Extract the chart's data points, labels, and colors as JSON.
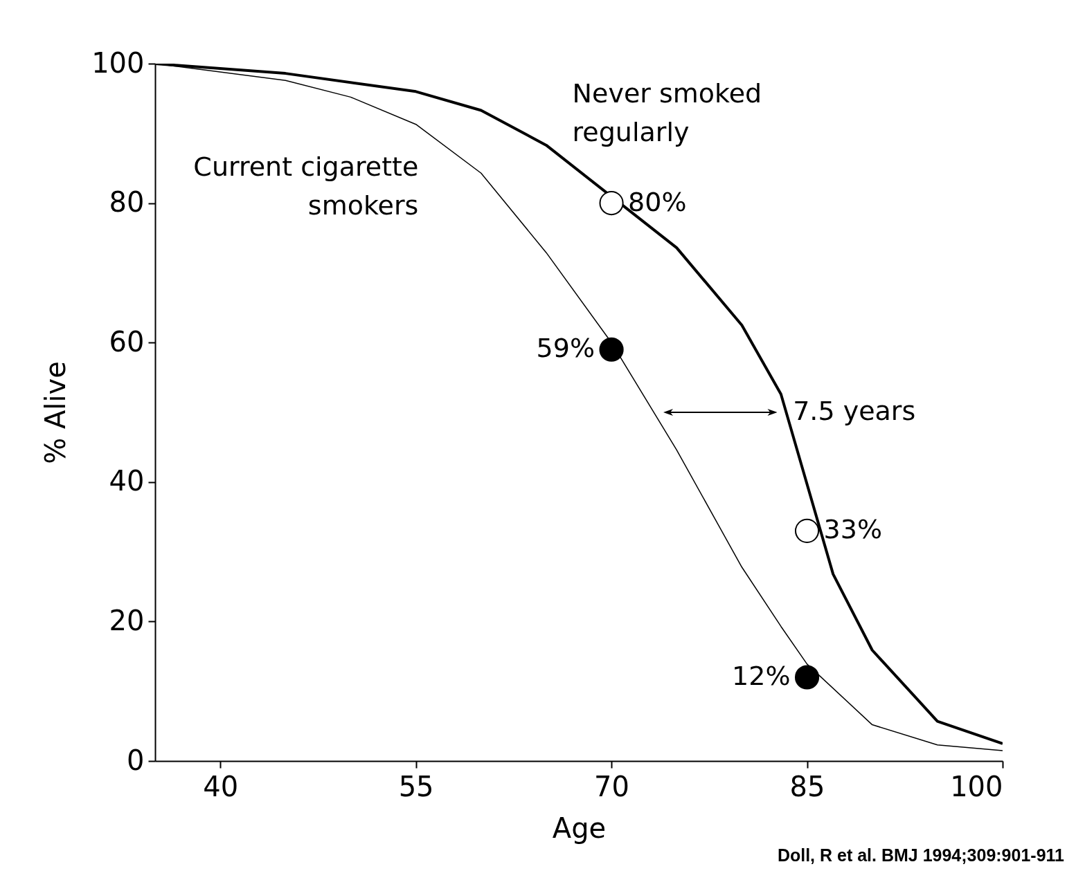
{
  "chart_data": {
    "type": "line",
    "xlabel": "Age",
    "ylabel": "% Alive",
    "xlim": [
      35,
      100
    ],
    "ylim": [
      0,
      100
    ],
    "xticks": [
      40,
      55,
      70,
      85,
      100
    ],
    "yticks": [
      0,
      20,
      40,
      60,
      80,
      100
    ],
    "grid": false,
    "line_style": "solid",
    "series": [
      {
        "name": "Never smoked regularly",
        "color": "#000000",
        "x": [
          35,
          45,
          55,
          60,
          65,
          75,
          80,
          83,
          87,
          90,
          95,
          100
        ],
        "values": [
          100,
          98.6,
          96,
          93.3,
          88.3,
          73.6,
          62.5,
          52.6,
          26.8,
          15.9,
          5.7,
          2.5
        ]
      },
      {
        "name": "Current cigarette smokers",
        "color": "#000000",
        "x": [
          35,
          45,
          50,
          55,
          60,
          65,
          70,
          75,
          80,
          83,
          85,
          90,
          95,
          100
        ],
        "values": [
          100,
          97.6,
          95.2,
          91.3,
          84.3,
          72.9,
          60,
          44.6,
          27.8,
          19.3,
          13.9,
          5.2,
          2.3,
          1.5
        ]
      },
      {
        "type": "scatter",
        "marker": "circle",
        "color": "#ffffff",
        "x": [
          70,
          85
        ],
        "values": [
          80,
          33
        ],
        "value_labels": [
          "80%",
          "33%"
        ]
      },
      {
        "type": "scatter",
        "marker": "circle",
        "color": "#000000",
        "x": [
          70,
          85
        ],
        "values": [
          59,
          12
        ],
        "value_labels": [
          "59%",
          "12%"
        ]
      }
    ],
    "annotations": [
      "7.5 years",
      "Doll, R et al. BMJ 1994;309:901-911"
    ]
  }
}
